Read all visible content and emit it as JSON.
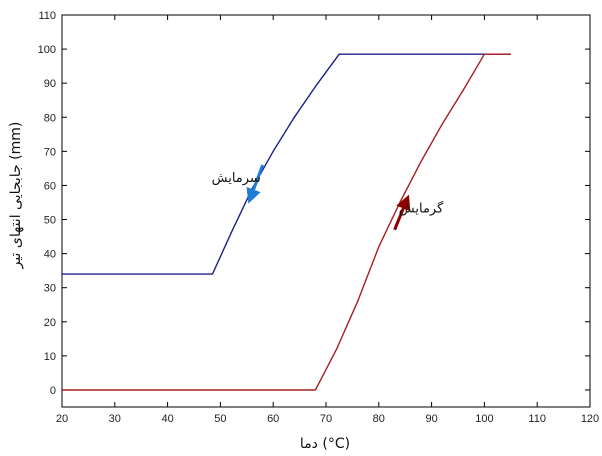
{
  "chart_data": {
    "type": "line",
    "xlabel": "دما (°C)",
    "ylabel": "جابجایی انتهای تیر (mm)",
    "xlim": [
      20,
      120
    ],
    "ylim": [
      -5,
      110
    ],
    "xticks": [
      20,
      30,
      40,
      50,
      60,
      70,
      80,
      90,
      100,
      110,
      120
    ],
    "yticks": [
      0,
      10,
      20,
      30,
      40,
      50,
      60,
      70,
      80,
      90,
      100,
      110
    ],
    "x_tick_labels": [
      "20",
      "30",
      "40",
      "50",
      "60",
      "70",
      "80",
      "90",
      "100",
      "110",
      "120"
    ],
    "y_tick_labels": [
      "0",
      "10",
      "20",
      "30",
      "40",
      "50",
      "60",
      "70",
      "80",
      "90",
      "100",
      "110"
    ],
    "grid": false,
    "series": [
      {
        "color": "#1f1f8f",
        "x": [
          20,
          48.5,
          52,
          56,
          60,
          64,
          68,
          72.5,
          105
        ],
        "y": [
          34,
          34,
          46,
          59,
          70,
          80,
          89,
          98.5,
          98.5
        ]
      },
      {
        "color": "#a81e1e",
        "x": [
          20,
          68,
          72,
          76,
          80,
          84,
          88,
          92,
          96,
          100,
          105
        ],
        "y": [
          0,
          0,
          12,
          26,
          42,
          55,
          67,
          78,
          88,
          98.5,
          98.5
        ]
      }
    ],
    "annotations": [
      {
        "text": "سرمایش",
        "x": 53,
        "y": 61,
        "arrow_color": "#1e7bd6"
      },
      {
        "text": "گرمایش",
        "x": 88,
        "y": 52,
        "arrow_color": "#8b0000"
      }
    ]
  }
}
